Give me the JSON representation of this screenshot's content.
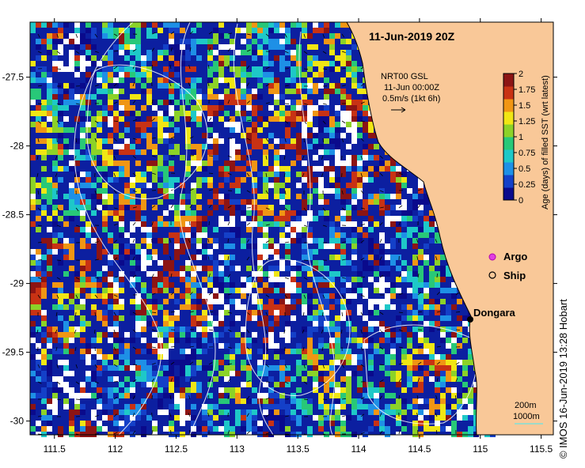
{
  "map": {
    "title": "11-Jun-2019 20Z",
    "current_product": "NRT00 GSL",
    "current_time": "11-Jun 00:00Z",
    "scale_arrow_label": "0.5m/s (1kt 6h)",
    "x_ticks": [
      "111.5",
      "112",
      "112.5",
      "113",
      "113.5",
      "114",
      "114.5",
      "115",
      "115.5"
    ],
    "y_ticks": [
      "-27.5",
      "-28",
      "-28.5",
      "-29",
      "-29.5",
      "-30"
    ],
    "lon_range": [
      111.3,
      115.6
    ],
    "lat_range": [
      -30.1,
      -27.1
    ],
    "legend": {
      "argo": "Argo",
      "ship": "Ship"
    },
    "place_label": "Dongara",
    "isobaths": [
      "200m",
      "1000m"
    ],
    "colorbar": {
      "label": "Age (days) of filled SST (wrt latest)",
      "ticks": [
        "2",
        "1.75",
        "1.5",
        "1.25",
        "1",
        "0.75",
        "0.5",
        "0.25",
        "0"
      ],
      "colors": [
        "#0a0a8c",
        "#1440c8",
        "#1e90e6",
        "#1ec8c8",
        "#28c878",
        "#8cd228",
        "#f0e614",
        "#f09614",
        "#c83214",
        "#8c1414"
      ]
    },
    "land_color": "#f9c898",
    "credit": "© IMOS 16-Jun-2019 13:28 Hobart"
  }
}
